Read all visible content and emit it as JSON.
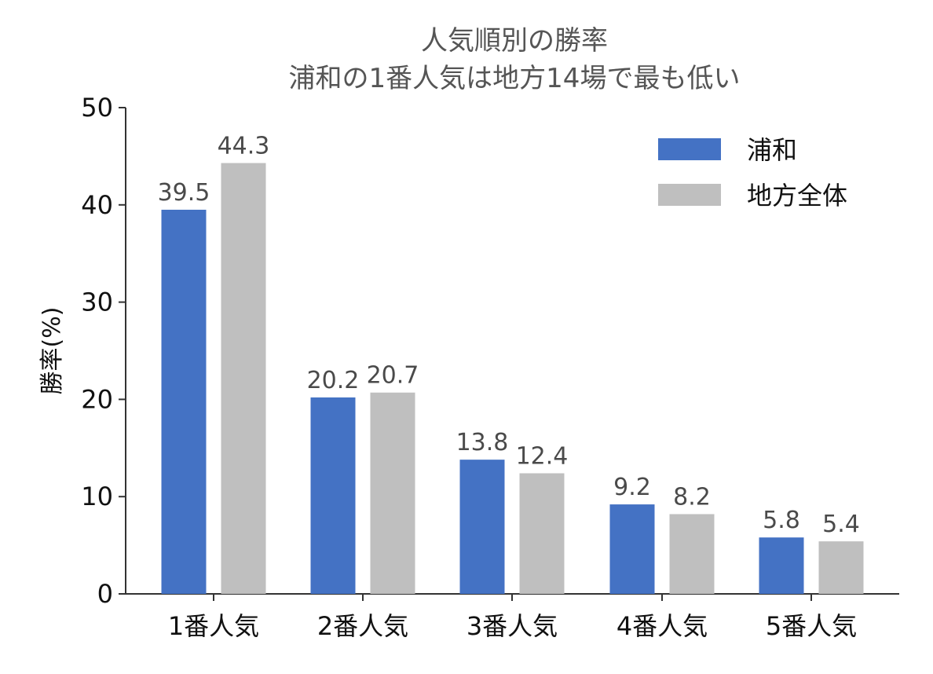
{
  "chart_data": {
    "type": "bar",
    "title_lines": [
      "人気順別の勝率",
      "浦和の1番人気は地方14場で最も低い"
    ],
    "categories": [
      "1番人気",
      "2番人気",
      "3番人気",
      "4番人気",
      "5番人気"
    ],
    "series": [
      {
        "name": "浦和",
        "values": [
          39.5,
          20.2,
          13.8,
          9.2,
          5.8
        ],
        "color": "#4472c4"
      },
      {
        "name": "地方全体",
        "values": [
          44.3,
          20.7,
          12.4,
          8.2,
          5.4
        ],
        "color": "#bfbfbf"
      }
    ],
    "xlabel": "",
    "ylabel": "勝率(%)",
    "ylim": [
      0,
      50
    ],
    "yticks": [
      0,
      10,
      20,
      30,
      40,
      50
    ],
    "grid": false,
    "legend": "top-right",
    "colors": {
      "axis": "#333333",
      "text": "#111111",
      "data_label": "#4a4a4a"
    }
  }
}
